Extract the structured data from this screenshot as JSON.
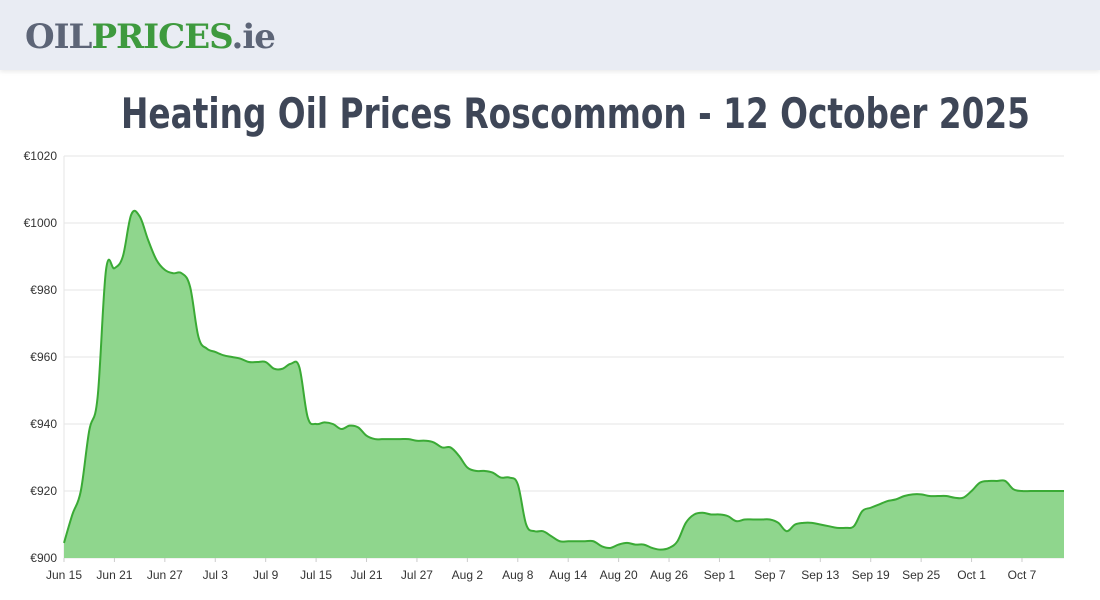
{
  "header": {
    "logo_part1": "OIL",
    "logo_part2": "PRICES",
    "logo_part3": ".ie"
  },
  "title": "Heating Oil Prices Roscommon - 12 October 2025",
  "colors": {
    "header_bg": "#e9ecf3",
    "logo_grey": "#5d6577",
    "logo_green": "#3e9a3e",
    "line": "#3aaa35",
    "fill": "#8fd68d",
    "grid": "#e5e5e5"
  },
  "chart_data": {
    "type": "area",
    "title": "Heating Oil Prices Roscommon - 12 October 2025",
    "xlabel": "",
    "ylabel": "",
    "grid": true,
    "legend": "none",
    "xlim": [
      0,
      119
    ],
    "ylim": [
      900,
      1020
    ],
    "y_ticks": [
      900,
      920,
      940,
      960,
      980,
      1000,
      1020
    ],
    "y_tick_labels": [
      "€900",
      "€920",
      "€940",
      "€960",
      "€980",
      "€1000",
      "€1020"
    ],
    "x_ticks": [
      0,
      6,
      12,
      18,
      24,
      30,
      36,
      42,
      48,
      54,
      60,
      66,
      72,
      78,
      84,
      90,
      96,
      102,
      108,
      114
    ],
    "x_tick_labels": [
      "Jun 15",
      "Jun 21",
      "Jun 27",
      "Jul 3",
      "Jul 9",
      "Jul 15",
      "Jul 21",
      "Jul 27",
      "Aug 2",
      "Aug 8",
      "Aug 14",
      "Aug 20",
      "Aug 26",
      "Sep 1",
      "Sep 7",
      "Sep 13",
      "Sep 19",
      "Sep 25",
      "Oct 1",
      "Oct 7"
    ],
    "x_unit": "days from Jun 15",
    "x": [
      0,
      1,
      2,
      3,
      4,
      5,
      6,
      7,
      8,
      9,
      10,
      11,
      12,
      13,
      14,
      15,
      16,
      17,
      18,
      19,
      20,
      21,
      22,
      23,
      24,
      25,
      26,
      27,
      28,
      29,
      30,
      31,
      32,
      33,
      34,
      35,
      36,
      37,
      38,
      39,
      40,
      41,
      42,
      43,
      44,
      45,
      46,
      47,
      48,
      49,
      50,
      51,
      52,
      53,
      54,
      55,
      56,
      57,
      58,
      59,
      60,
      61,
      62,
      63,
      64,
      65,
      66,
      67,
      68,
      69,
      70,
      71,
      72,
      73,
      74,
      75,
      76,
      77,
      78,
      79,
      80,
      81,
      82,
      83,
      84,
      85,
      86,
      87,
      88,
      89,
      90,
      91,
      92,
      93,
      94,
      95,
      96,
      97,
      98,
      99,
      100,
      101,
      102,
      103,
      104,
      105,
      106,
      107,
      108,
      109,
      110,
      111,
      112,
      113,
      114,
      115,
      116,
      117,
      118,
      119
    ],
    "series": [
      {
        "values": [
          904.5,
          913,
          920,
          938,
          948,
          986,
          986.5,
          990,
          1002.5,
          1002,
          995,
          989,
          986,
          985,
          985,
          981,
          966,
          962.5,
          961.5,
          960.5,
          960,
          959.5,
          958.5,
          958.5,
          958.5,
          956.5,
          956.5,
          958,
          957,
          942,
          940,
          940.5,
          940,
          938.5,
          939.5,
          939,
          936.5,
          935.5,
          935.5,
          935.5,
          935.5,
          935.5,
          935,
          935,
          934.5,
          933,
          933,
          930.5,
          927,
          926,
          926,
          925.5,
          924,
          924,
          922,
          910,
          908,
          908,
          906.5,
          905,
          905,
          905,
          905,
          905,
          903.5,
          903,
          904,
          904.5,
          904,
          904,
          903,
          902.5,
          903,
          905,
          910.5,
          913,
          913.5,
          913,
          913,
          912.5,
          911,
          911.5,
          911.5,
          911.5,
          911.5,
          910.5,
          908,
          910,
          910.5,
          910.5,
          910,
          909.5,
          909,
          909,
          909.5,
          914,
          915,
          916,
          917,
          917.5,
          918.5,
          919,
          919,
          918.5,
          918.5,
          918.5,
          918,
          918,
          920,
          922.5,
          923,
          923,
          923,
          920.5,
          920,
          920,
          920,
          920,
          920,
          920
        ]
      }
    ]
  }
}
